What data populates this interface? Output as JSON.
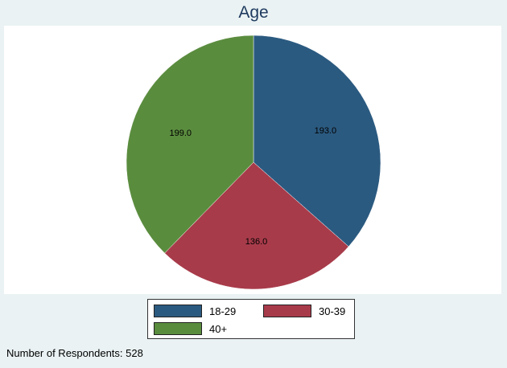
{
  "chart_data": {
    "type": "pie",
    "title": "Age",
    "categories": [
      "18-29",
      "30-39",
      "40+"
    ],
    "values": [
      193.0,
      136.0,
      199.0
    ],
    "data_labels": [
      "193.0",
      "136.0",
      "199.0"
    ],
    "colors": [
      "#2b5a80",
      "#a83b4a",
      "#5a8c3e"
    ],
    "start_angle_deg": 90,
    "direction": "clockwise",
    "legend": {
      "placement": "bottom",
      "entries": [
        "18-29",
        "30-39",
        "40+"
      ]
    }
  },
  "footnote": "Number of Respondents: 528"
}
